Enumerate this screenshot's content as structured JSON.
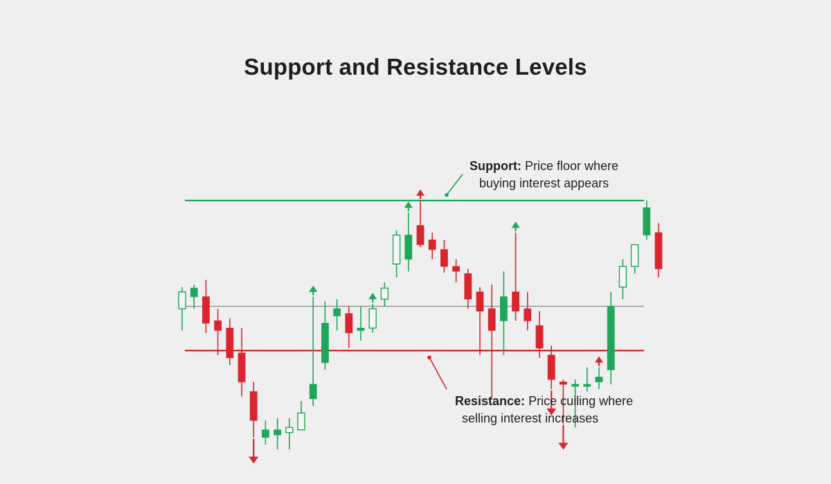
{
  "title": "Support and Resistance Levels",
  "annotations": {
    "support": {
      "label": "Support:",
      "line1": "Price floor where",
      "line2": "buying interest appears"
    },
    "resistance": {
      "label": "Resistance:",
      "line1": "Price cuiling where",
      "line2": "selling interest increases"
    }
  },
  "colors": {
    "bull": "#1fa65a",
    "bear": "#d9262e",
    "upper_line": "#1fa65a",
    "lower_line": "#d9262e",
    "mid_line": "#a9a9a9"
  },
  "chart_data": {
    "type": "candlestick",
    "title": "Support and Resistance Levels",
    "xlabel": "",
    "ylabel": "",
    "grid": false,
    "levels": {
      "upper": 100,
      "middle": 60.5,
      "lower": 44
    },
    "candles": [
      {
        "o": 59.6,
        "h": 67.7,
        "l": 51.5,
        "c": 65.9,
        "style": "hollow"
      },
      {
        "o": 64.1,
        "h": 68.6,
        "l": 59.6,
        "c": 67.3,
        "style": "filled"
      },
      {
        "o": 64.1,
        "h": 70.4,
        "l": 50.6,
        "c": 54.2,
        "style": "filled"
      },
      {
        "o": 55.1,
        "h": 59.6,
        "l": 42.3,
        "c": 51.5,
        "style": "filled"
      },
      {
        "o": 52.4,
        "h": 56.0,
        "l": 38.6,
        "c": 41.3,
        "style": "filled"
      },
      {
        "o": 43.1,
        "h": 52.4,
        "l": 26.9,
        "c": 32.3,
        "style": "filled"
      },
      {
        "o": 28.7,
        "h": 32.3,
        "l": 11.6,
        "c": 17.9,
        "style": "filled"
      },
      {
        "o": 11.6,
        "h": 17.9,
        "l": 8.9,
        "c": 14.4,
        "style": "filled"
      },
      {
        "o": 12.5,
        "h": 18.8,
        "l": 7.1,
        "c": 14.4,
        "style": "filled"
      },
      {
        "o": 13.4,
        "h": 18.8,
        "l": 7.1,
        "c": 15.3,
        "style": "hollow"
      },
      {
        "o": 14.4,
        "h": 25.1,
        "l": 15.3,
        "c": 20.7,
        "style": "hollow"
      },
      {
        "o": 26.0,
        "h": 64.1,
        "l": 23.3,
        "c": 31.4,
        "style": "filled"
      },
      {
        "o": 39.5,
        "h": 62.3,
        "l": 36.8,
        "c": 54.2,
        "style": "filled"
      },
      {
        "o": 56.9,
        "h": 63.2,
        "l": 51.5,
        "c": 59.6,
        "style": "filled"
      },
      {
        "o": 57.8,
        "h": 60.5,
        "l": 44.9,
        "c": 50.6,
        "style": "filled"
      },
      {
        "o": 51.5,
        "h": 60.5,
        "l": 47.7,
        "c": 52.4,
        "style": "filled"
      },
      {
        "o": 52.4,
        "h": 61.4,
        "l": 50.6,
        "c": 59.6,
        "style": "hollow"
      },
      {
        "o": 63.2,
        "h": 69.5,
        "l": 60.5,
        "c": 67.3,
        "style": "hollow"
      },
      {
        "o": 76.3,
        "h": 88.9,
        "l": 71.3,
        "c": 87.1,
        "style": "hollow"
      },
      {
        "o": 78.1,
        "h": 95.5,
        "l": 73.5,
        "c": 87.1,
        "style": "filled"
      },
      {
        "o": 90.7,
        "h": 100.0,
        "l": 82.6,
        "c": 83.5,
        "style": "filled"
      },
      {
        "o": 85.3,
        "h": 88.0,
        "l": 78.1,
        "c": 81.7,
        "style": "filled"
      },
      {
        "o": 81.7,
        "h": 85.3,
        "l": 73.1,
        "c": 75.4,
        "style": "filled"
      },
      {
        "o": 75.4,
        "h": 78.1,
        "l": 69.5,
        "c": 73.6,
        "style": "filled"
      },
      {
        "o": 72.7,
        "h": 74.5,
        "l": 59.6,
        "c": 63.2,
        "style": "filled"
      },
      {
        "o": 65.9,
        "h": 67.7,
        "l": 42.3,
        "c": 58.7,
        "style": "filled"
      },
      {
        "o": 59.6,
        "h": 68.6,
        "l": 26.0,
        "c": 51.5,
        "style": "filled"
      },
      {
        "o": 55.1,
        "h": 73.6,
        "l": 42.3,
        "c": 64.1,
        "style": "filled"
      },
      {
        "o": 65.9,
        "h": 88.0,
        "l": 55.1,
        "c": 58.7,
        "style": "filled"
      },
      {
        "o": 59.6,
        "h": 65.9,
        "l": 51.5,
        "c": 55.1,
        "style": "filled"
      },
      {
        "o": 53.3,
        "h": 58.7,
        "l": 41.3,
        "c": 44.9,
        "style": "filled"
      },
      {
        "o": 42.3,
        "h": 45.8,
        "l": 29.6,
        "c": 33.2,
        "style": "filled"
      },
      {
        "o": 32.3,
        "h": 33.2,
        "l": 16.8,
        "c": 31.4,
        "style": "filled"
      },
      {
        "o": 31.4,
        "h": 33.2,
        "l": 15.3,
        "c": 31.4,
        "style": "filled"
      },
      {
        "o": 31.4,
        "h": 37.7,
        "l": 28.7,
        "c": 31.4,
        "style": "filled"
      },
      {
        "o": 32.3,
        "h": 37.7,
        "l": 29.6,
        "c": 34.1,
        "style": "filled"
      },
      {
        "o": 36.8,
        "h": 65.9,
        "l": 31.4,
        "c": 60.5,
        "style": "filled"
      },
      {
        "o": 67.7,
        "h": 78.1,
        "l": 63.2,
        "c": 75.4,
        "style": "hollow"
      },
      {
        "o": 75.4,
        "h": 82.6,
        "l": 72.7,
        "c": 83.5,
        "style": "hollow"
      },
      {
        "o": 87.1,
        "h": 100.0,
        "l": 85.3,
        "c": 97.3,
        "style": "filled"
      },
      {
        "o": 88.0,
        "h": 91.6,
        "l": 71.3,
        "c": 74.5,
        "style": "filled"
      }
    ],
    "arrows": [
      {
        "candle": 11,
        "direction": "up",
        "color": "bull"
      },
      {
        "candle": 6,
        "direction": "down",
        "color": "bear"
      },
      {
        "candle": 16,
        "direction": "up",
        "color": "bull"
      },
      {
        "candle": 19,
        "direction": "up",
        "color": "bull"
      },
      {
        "candle": 20,
        "direction": "up",
        "color": "bear"
      },
      {
        "candle": 28,
        "direction": "up",
        "color": "bull"
      },
      {
        "candle": 31,
        "direction": "down",
        "color": "bear"
      },
      {
        "candle": 32,
        "direction": "down",
        "color": "bear"
      },
      {
        "candle": 35,
        "direction": "up",
        "color": "bear"
      }
    ]
  }
}
